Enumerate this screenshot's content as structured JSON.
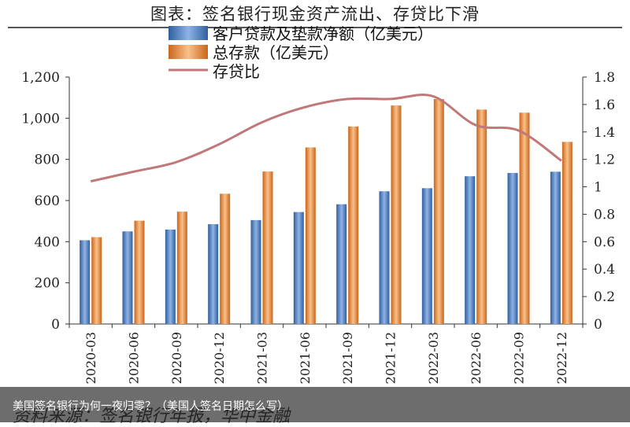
{
  "title": "图表：签名银行现金资产流出、存贷比下滑",
  "source": "资料来源：签名银行年报，华中金融",
  "overlay_caption": "美国签名银行为何一夜归零？（美国人签名日期怎么写）",
  "chart_data": {
    "type": "bar",
    "categories": [
      "2020-03",
      "2020-06",
      "2020-09",
      "2020-12",
      "2021-03",
      "2021-06",
      "2021-09",
      "2021-12",
      "2022-03",
      "2022-06",
      "2022-09",
      "2022-12"
    ],
    "series": [
      {
        "name": "客户贷款及垫款净额（亿美元）",
        "kind": "bar",
        "axis": "left",
        "color": "#4f81bd",
        "values": [
          407,
          450,
          459,
          485,
          505,
          544,
          582,
          645,
          660,
          718,
          734,
          740
        ]
      },
      {
        "name": "总存款（亿美元）",
        "kind": "bar",
        "axis": "left",
        "color": "#f79646",
        "values": [
          422,
          502,
          546,
          633,
          741,
          858,
          960,
          1062,
          1093,
          1042,
          1027,
          885
        ]
      },
      {
        "name": "存贷比",
        "kind": "line",
        "axis": "right",
        "color": "#c07878",
        "values": [
          1.04,
          1.11,
          1.18,
          1.31,
          1.47,
          1.58,
          1.64,
          1.64,
          1.66,
          1.45,
          1.41,
          1.19
        ]
      }
    ],
    "left_axis": {
      "min": 0,
      "max": 1200,
      "ticks": [
        "0",
        "200",
        "400",
        "600",
        "800",
        "1,000",
        "1,200"
      ]
    },
    "right_axis": {
      "min": 0,
      "max": 1.8,
      "ticks": [
        "0",
        "0.2",
        "0.4",
        "0.6",
        "0.8",
        "1",
        "1.2",
        "1.4",
        "1.6",
        "1.8"
      ]
    },
    "grid": false,
    "legend_position": "top-left"
  }
}
